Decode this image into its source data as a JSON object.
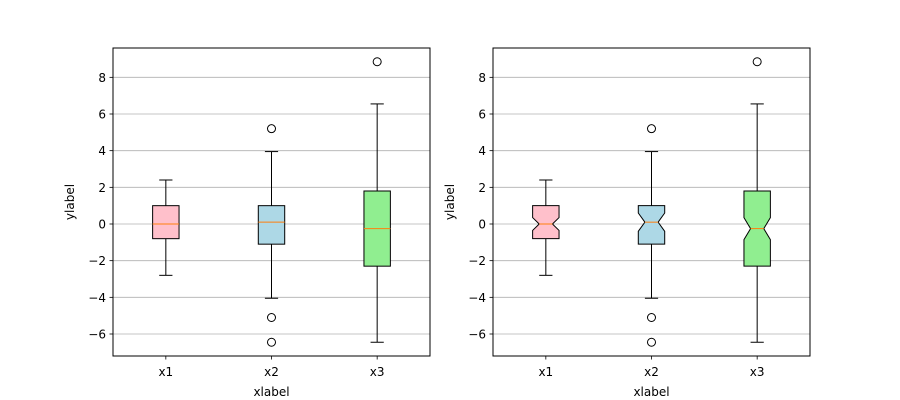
{
  "chart_data": [
    {
      "type": "boxplot",
      "notched": false,
      "categories": [
        "x1",
        "x2",
        "x3"
      ],
      "box_colors": [
        "#ffc0cb",
        "#add8e6",
        "#90ee90"
      ],
      "median_color": "#ff7f0e",
      "xlabel": "xlabel",
      "ylabel": "ylabel",
      "ylim": [
        -7.2,
        9.6
      ],
      "yticks": [
        -6,
        -4,
        -2,
        0,
        2,
        4,
        6,
        8
      ],
      "ytick_labels": [
        "−6",
        "−4",
        "−2",
        "0",
        "2",
        "4",
        "6",
        "8"
      ],
      "grid": "horizontal",
      "series": [
        {
          "name": "x1",
          "whisker_low": -2.8,
          "q1": -0.8,
          "median": 0.0,
          "q3": 1.0,
          "whisker_high": 2.4,
          "fliers": []
        },
        {
          "name": "x2",
          "whisker_low": -4.05,
          "q1": -1.1,
          "median": 0.1,
          "q3": 1.0,
          "whisker_high": 3.95,
          "fliers": [
            5.2,
            -5.1,
            -6.45
          ]
        },
        {
          "name": "x3",
          "whisker_low": -6.45,
          "q1": -2.3,
          "median": -0.25,
          "q3": 1.8,
          "whisker_high": 6.55,
          "fliers": [
            8.85
          ]
        }
      ]
    },
    {
      "type": "boxplot",
      "notched": true,
      "categories": [
        "x1",
        "x2",
        "x3"
      ],
      "box_colors": [
        "#ffc0cb",
        "#add8e6",
        "#90ee90"
      ],
      "median_color": "#ff7f0e",
      "xlabel": "xlabel",
      "ylabel": "ylabel",
      "ylim": [
        -7.2,
        9.6
      ],
      "yticks": [
        -6,
        -4,
        -2,
        0,
        2,
        4,
        6,
        8
      ],
      "ytick_labels": [
        "−6",
        "−4",
        "−2",
        "0",
        "2",
        "4",
        "6",
        "8"
      ],
      "grid": "horizontal",
      "series": [
        {
          "name": "x1",
          "whisker_low": -2.8,
          "q1": -0.8,
          "median": 0.0,
          "q3": 1.0,
          "whisker_high": 2.4,
          "fliers": [],
          "notch_low": -0.35,
          "notch_high": 0.35
        },
        {
          "name": "x2",
          "whisker_low": -4.05,
          "q1": -1.1,
          "median": 0.1,
          "q3": 1.0,
          "whisker_high": 3.95,
          "fliers": [
            5.2,
            -5.1,
            -6.45
          ],
          "notch_low": -0.4,
          "notch_high": 0.6
        },
        {
          "name": "x3",
          "whisker_low": -6.45,
          "q1": -2.3,
          "median": -0.25,
          "q3": 1.8,
          "whisker_high": 6.55,
          "fliers": [
            8.85
          ],
          "notch_low": -0.85,
          "notch_high": 0.35
        }
      ]
    }
  ]
}
